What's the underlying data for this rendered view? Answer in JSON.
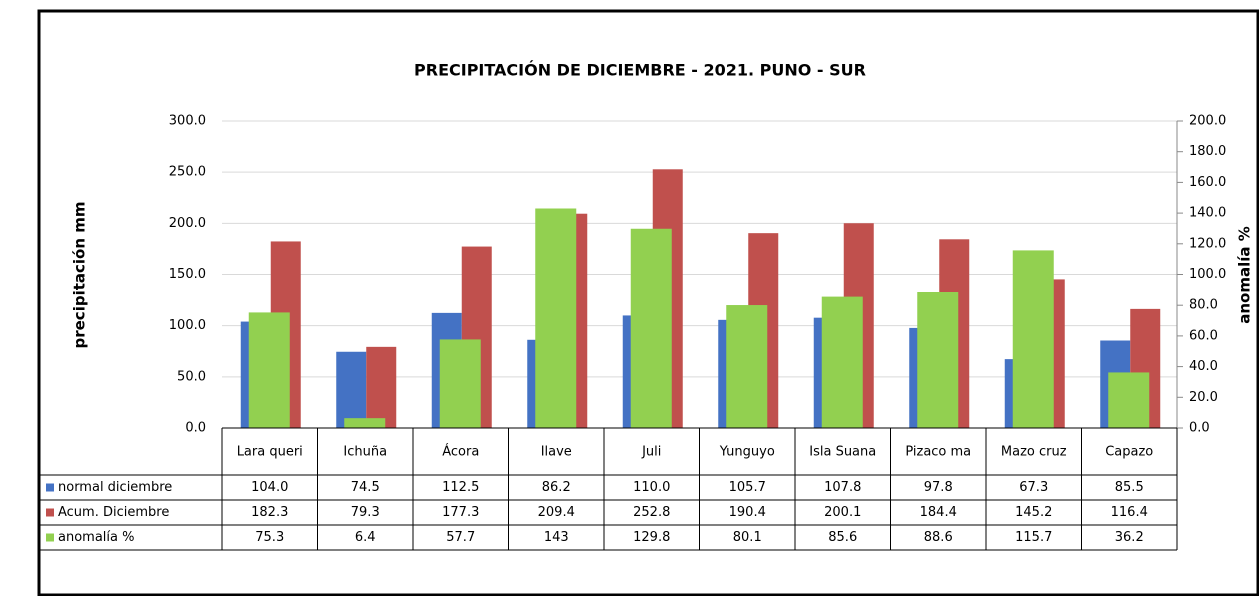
{
  "chart_data": {
    "type": "bar",
    "title": "PRECIPITACIÓN DE DICIEMBRE - 2021. PUNO - SUR",
    "ylabel": "precipitación mm",
    "y2label": "anomalía %",
    "categories": [
      "Lara queri",
      "Ichuña",
      "Ácora",
      "Ilave",
      "Juli",
      "Yunguyo",
      "Isla Suana",
      "Pizaco ma",
      "Mazo cruz",
      "Capazo"
    ],
    "series": [
      {
        "name": "normal diciembre",
        "color": "#4472c4",
        "values": [
          104,
          74.5,
          112.5,
          86.2,
          110,
          105.7,
          107.8,
          97.8,
          67.3,
          85.5
        ],
        "value_labels": [
          "104.0",
          "74.5",
          "112.5",
          "86.2",
          "110.0",
          "105.7",
          "107.8",
          "97.8",
          "67.3",
          "85.5"
        ]
      },
      {
        "name": "Acum. Diciembre",
        "color": "#c0504d",
        "values": [
          182.3,
          79.3,
          177.3,
          209.4,
          252.8,
          190.4,
          200.1,
          184.4,
          145.2,
          116.4
        ]
      },
      {
        "name": "anomalía %",
        "color": "#92d050",
        "axis": "y2",
        "values": [
          75.3,
          6.4,
          57.7,
          143,
          129.8,
          80.1,
          85.6,
          88.6,
          115.7,
          36.2
        ]
      }
    ],
    "ylim": [
      0,
      300
    ],
    "yticks": [
      {
        "value": 0,
        "label": "0.0"
      },
      {
        "value": 50,
        "label": "50.0"
      },
      {
        "value": 100,
        "label": "100.0"
      },
      {
        "value": 150,
        "label": "150.0"
      },
      {
        "value": 200,
        "label": "200.0"
      },
      {
        "value": 250,
        "label": "250.0"
      },
      {
        "value": 300,
        "label": "300.0"
      }
    ],
    "y2lim": [
      0,
      200
    ],
    "y2ticks": [
      {
        "value": 0,
        "label": "0.0"
      },
      {
        "value": 20,
        "label": "20.0"
      },
      {
        "value": 40,
        "label": "40.0"
      },
      {
        "value": 60,
        "label": "60.0"
      },
      {
        "value": 80,
        "label": "80.0"
      },
      {
        "value": 100,
        "label": "100.0"
      },
      {
        "value": 120,
        "label": "120.0"
      },
      {
        "value": 140,
        "label": "140.0"
      },
      {
        "value": 160,
        "label": "160.0"
      },
      {
        "value": 180,
        "label": "180.0"
      },
      {
        "value": 200,
        "label": "200.0"
      }
    ],
    "grid": true
  }
}
